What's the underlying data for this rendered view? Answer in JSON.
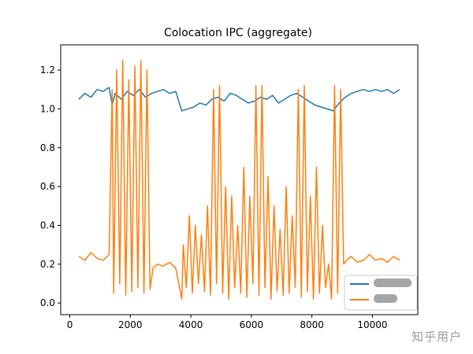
{
  "chart_data": {
    "type": "line",
    "title": "Colocation IPC (aggregate)",
    "xlabel": "",
    "ylabel": "",
    "xlim": [
      -300,
      11500
    ],
    "ylim": [
      -0.06,
      1.33
    ],
    "xticks": [
      0,
      2000,
      4000,
      6000,
      8000,
      10000
    ],
    "yticks": [
      0.0,
      0.2,
      0.4,
      0.6,
      0.8,
      1.0,
      1.2
    ],
    "xtick_labels": [
      "0",
      "2000",
      "4000",
      "6000",
      "8000",
      "10000"
    ],
    "ytick_labels": [
      "0.0",
      "0.2",
      "0.4",
      "0.6",
      "0.8",
      "1.0",
      "1.2"
    ],
    "grid": false,
    "legend_position": "lower-right",
    "series": [
      {
        "color": "#1f77b4",
        "x": [
          300,
          500,
          700,
          900,
          1100,
          1300,
          1400,
          1500,
          1700,
          1900,
          2100,
          2300,
          2500,
          2700,
          2900,
          3100,
          3300,
          3500,
          3700,
          3900,
          4100,
          4300,
          4500,
          4700,
          4900,
          5100,
          5300,
          5500,
          5700,
          5900,
          6100,
          6300,
          6500,
          6700,
          6900,
          7100,
          7300,
          7500,
          7700,
          7900,
          8100,
          8300,
          8500,
          8700,
          8900,
          9100,
          9300,
          9500,
          9700,
          9900,
          10100,
          10300,
          10500,
          10700,
          10900
        ],
        "y": [
          1.05,
          1.08,
          1.06,
          1.1,
          1.09,
          1.11,
          1.02,
          1.08,
          1.05,
          1.09,
          1.07,
          1.1,
          1.06,
          1.08,
          1.09,
          1.1,
          1.08,
          1.09,
          0.99,
          1.0,
          1.01,
          1.03,
          1.02,
          1.05,
          1.06,
          1.04,
          1.08,
          1.07,
          1.05,
          1.03,
          1.04,
          1.06,
          1.05,
          1.07,
          1.03,
          1.05,
          1.07,
          1.08,
          1.06,
          1.04,
          1.02,
          1.01,
          1.0,
          0.99,
          1.03,
          1.06,
          1.08,
          1.09,
          1.1,
          1.09,
          1.1,
          1.09,
          1.1,
          1.08,
          1.1
        ]
      },
      {
        "color": "#ff7f0e",
        "x": [
          300,
          500,
          700,
          900,
          1100,
          1300,
          1400,
          1450,
          1550,
          1650,
          1750,
          1850,
          1950,
          2050,
          2150,
          2250,
          2350,
          2450,
          2550,
          2650,
          2750,
          2900,
          3100,
          3300,
          3500,
          3700,
          3750,
          3850,
          3950,
          4050,
          4150,
          4250,
          4350,
          4450,
          4550,
          4650,
          4750,
          4850,
          4950,
          5050,
          5150,
          5250,
          5350,
          5450,
          5550,
          5650,
          5750,
          5850,
          5950,
          6050,
          6150,
          6250,
          6350,
          6450,
          6550,
          6650,
          6750,
          6850,
          6950,
          7050,
          7150,
          7250,
          7350,
          7450,
          7550,
          7650,
          7750,
          7850,
          7950,
          8050,
          8150,
          8250,
          8350,
          8450,
          8550,
          8650,
          8750,
          8850,
          8950,
          9050,
          9150,
          9300,
          9500,
          9700,
          9900,
          10100,
          10300,
          10500,
          10700,
          10900
        ],
        "y": [
          0.24,
          0.22,
          0.26,
          0.23,
          0.22,
          0.25,
          1.1,
          0.05,
          1.2,
          0.1,
          1.25,
          0.04,
          1.15,
          0.06,
          1.22,
          0.08,
          1.25,
          0.05,
          1.2,
          0.07,
          0.18,
          0.2,
          0.19,
          0.21,
          0.18,
          0.02,
          0.3,
          0.08,
          0.45,
          0.05,
          0.4,
          0.1,
          0.35,
          0.06,
          0.5,
          0.04,
          1.1,
          0.1,
          1.12,
          0.05,
          0.6,
          0.02,
          0.55,
          0.08,
          0.4,
          0.05,
          0.7,
          0.03,
          0.55,
          0.1,
          1.12,
          0.04,
          1.12,
          0.08,
          0.65,
          0.02,
          0.5,
          0.06,
          0.38,
          0.04,
          0.6,
          0.05,
          0.45,
          0.08,
          1.1,
          0.03,
          1.12,
          0.06,
          0.55,
          0.02,
          0.7,
          0.05,
          0.4,
          0.08,
          0.2,
          0.02,
          1.12,
          0.05,
          1.1,
          0.2,
          0.22,
          0.24,
          0.21,
          0.22,
          0.25,
          0.22,
          0.23,
          0.21,
          0.24,
          0.22
        ]
      }
    ]
  },
  "watermark": "知乎用户"
}
